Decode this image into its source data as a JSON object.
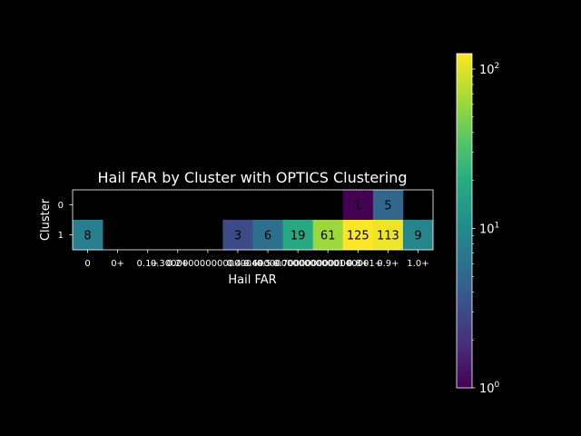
{
  "chart_data": {
    "type": "heatmap",
    "title": "Hail FAR by Cluster with OPTICS Clustering",
    "xlabel": "Hail FAR",
    "ylabel": "Cluster",
    "x_tick_labels": [
      "0",
      "0+",
      "0.1+",
      "0.2+",
      "0.3+",
      "0.4+",
      "0.5+",
      "0.6+",
      "0.7+",
      "0.8+",
      "0.9+",
      "1.0+"
    ],
    "x_tick_labels_rendered": [
      "0",
      "0+",
      "0.1+",
      "0.2+",
      "0.30000000000000004+",
      "0.4+",
      "0.5+",
      "0.6000000000000001+",
      "0.7000000000000001+",
      "0.8+",
      "0.9+",
      "1.0+"
    ],
    "y_tick_labels": [
      "0",
      "1"
    ],
    "rows": [
      {
        "cluster": "0",
        "values": [
          null,
          null,
          null,
          null,
          null,
          null,
          null,
          null,
          null,
          1,
          5,
          null
        ]
      },
      {
        "cluster": "1",
        "values": [
          8,
          null,
          null,
          null,
          null,
          3,
          6,
          19,
          61,
          125,
          113,
          9
        ]
      }
    ],
    "colormap": "viridis",
    "color_scale": "log",
    "vmin": 1,
    "vmax": 125,
    "colorbar_ticks": [
      {
        "base": "10",
        "exp": "0",
        "value": 1
      },
      {
        "base": "10",
        "exp": "1",
        "value": 10
      },
      {
        "base": "10",
        "exp": "2",
        "value": 100
      }
    ],
    "background_color": "#000000",
    "text_color": "#ffffff",
    "annotation_color": "#000000",
    "grid": false
  }
}
